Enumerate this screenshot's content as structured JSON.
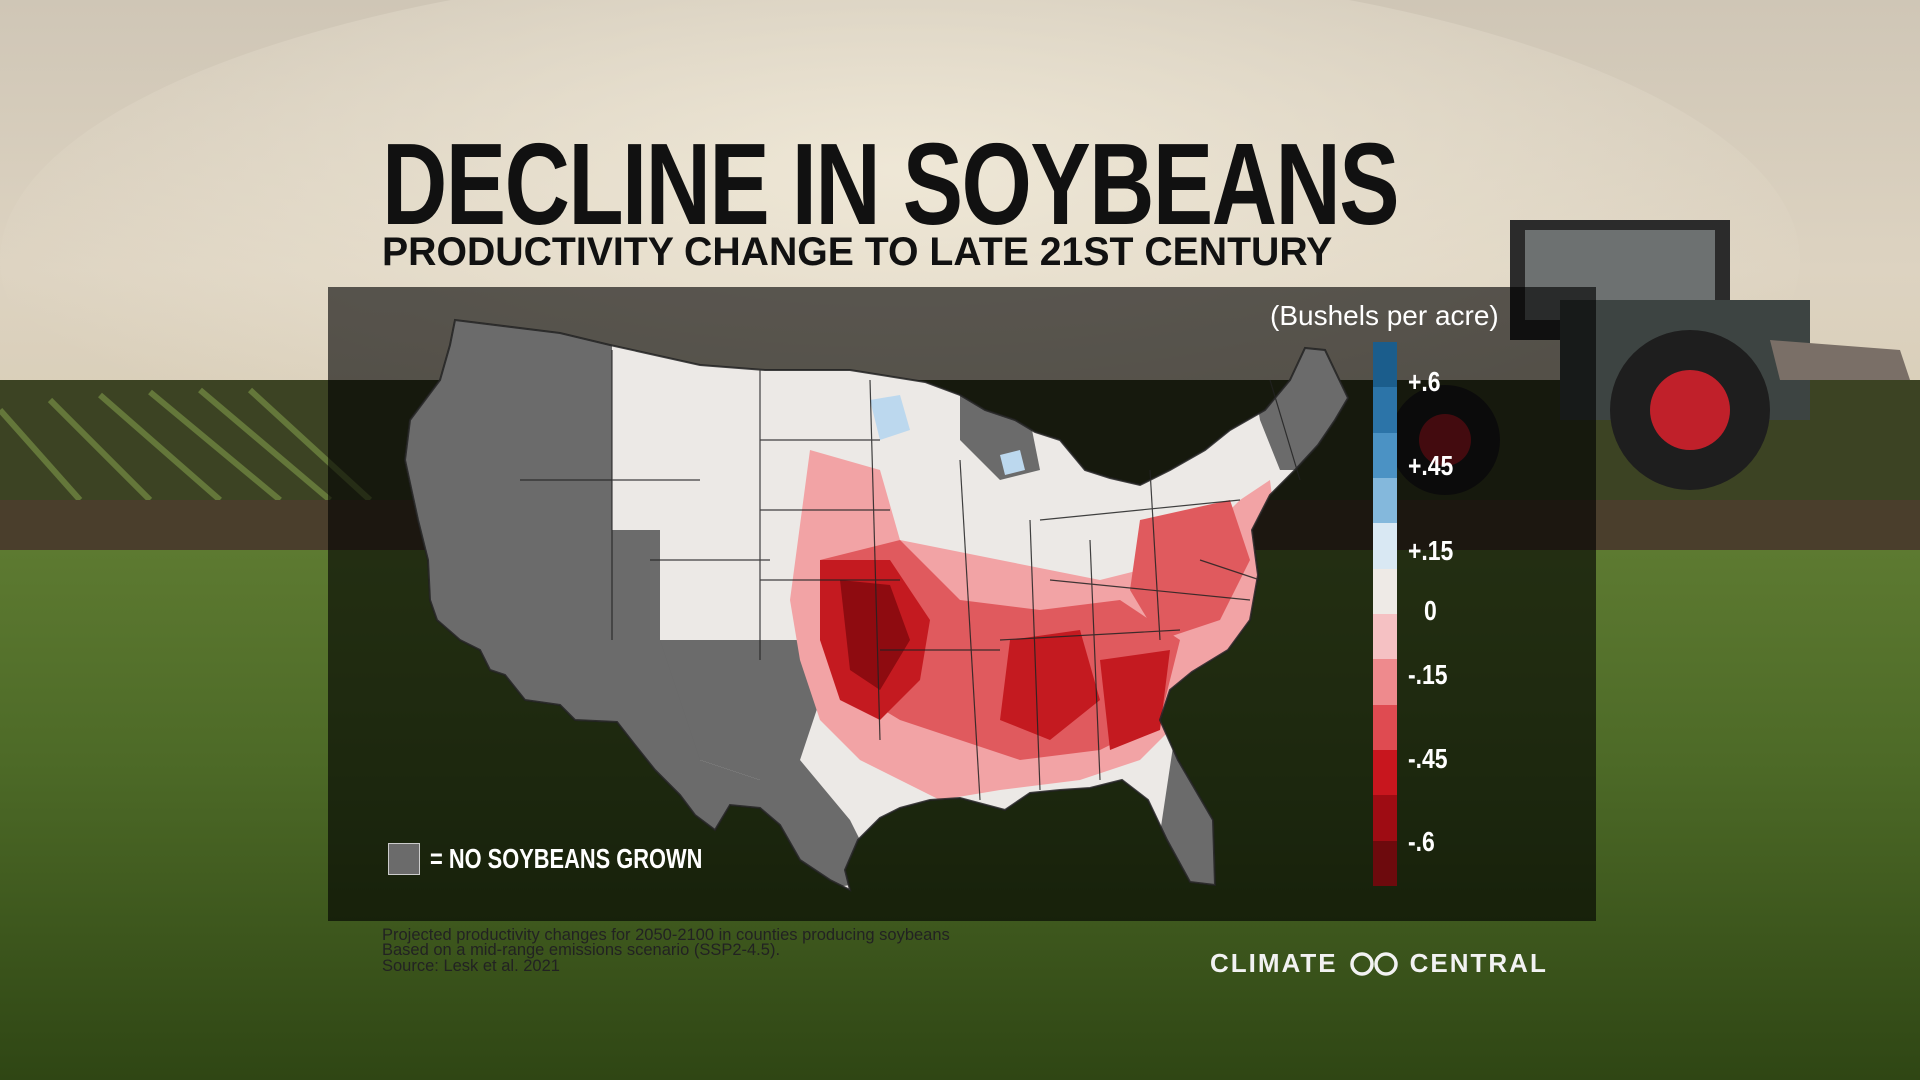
{
  "title": "DECLINE IN SOYBEANS",
  "subtitle": "PRODUCTIVITY CHANGE TO LATE 21ST CENTURY",
  "legend": {
    "unit_label": "(Bushels per acre)",
    "ticks": [
      "+.6",
      "+.45",
      "+.15",
      "0",
      "-.15",
      "-.45",
      "-.6"
    ],
    "colors": [
      "#1b5d8c",
      "#2c74a8",
      "#4b92c4",
      "#84b8dc",
      "#d9e8f3",
      "#eeeae6",
      "#f5c1c3",
      "#ee8a8d",
      "#df4b51",
      "#c8161e",
      "#9e0c13",
      "#6d0a0d"
    ]
  },
  "map_colors": {
    "no_soybeans": "#6b6b6b",
    "neutral": "#ece9e6",
    "light_red": "#f2a3a5",
    "mid_red": "#e05a5e",
    "strong_red": "#c41a20",
    "dark_red": "#8e0b10",
    "light_blue": "#bcd8ee"
  },
  "no_soybeans_key": "= NO SOYBEANS GROWN",
  "notes": [
    "Projected productivity changes for 2050-2100 in counties producing soybeans",
    "Based on a mid-range emissions scenario (SSP2-4.5).",
    "Source: Lesk et al. 2021"
  ],
  "brand": {
    "left": "CLIMATE",
    "right": "CENTRAL",
    "logo_icon": "infinity-icon"
  },
  "background_scene": "tractor-in-soybean-field-photo"
}
